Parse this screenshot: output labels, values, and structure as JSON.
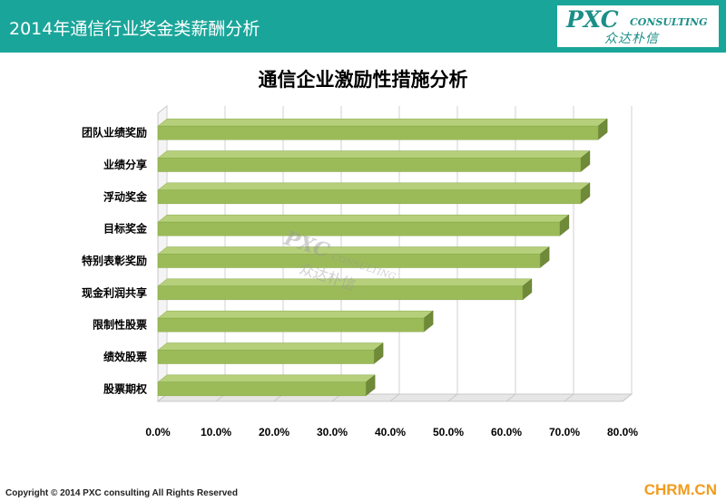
{
  "header": {
    "title": "2014年通信行业奖金类薪酬分析"
  },
  "brand": {
    "pxc": "PXC",
    "consulting": "CONSULTING",
    "cn": "众达朴信"
  },
  "watermark": {
    "pxc": "PXC",
    "consulting": "CONSULTING",
    "cn": "众达朴信"
  },
  "footer": {
    "copyright": "Copyright © 2014  PXC consulting All Rights Reserved",
    "site": "CHRM.CN"
  },
  "colors": {
    "header": "#1aa59a",
    "bar_front": "#9bbb59",
    "bar_top": "#b5cf7a",
    "bar_side": "#6f8a38",
    "site": "#f29b1d"
  },
  "chart_data": {
    "type": "bar",
    "orientation": "horizontal",
    "title": "通信企业激励性措施分析",
    "categories": [
      "团队业绩奖励",
      "业绩分享",
      "浮动奖金",
      "目标奖金",
      "特别表彰奖励",
      "现金利润共享",
      "限制性股票",
      "绩效股票",
      "股票期权"
    ],
    "values": [
      0.758,
      0.728,
      0.728,
      0.692,
      0.658,
      0.628,
      0.458,
      0.372,
      0.358
    ],
    "xlim": [
      0,
      0.8
    ],
    "x_ticks": [
      "0.0%",
      "10.0%",
      "20.0%",
      "30.0%",
      "40.0%",
      "50.0%",
      "60.0%",
      "70.0%",
      "80.0%"
    ],
    "grid": true,
    "style": "3d"
  }
}
